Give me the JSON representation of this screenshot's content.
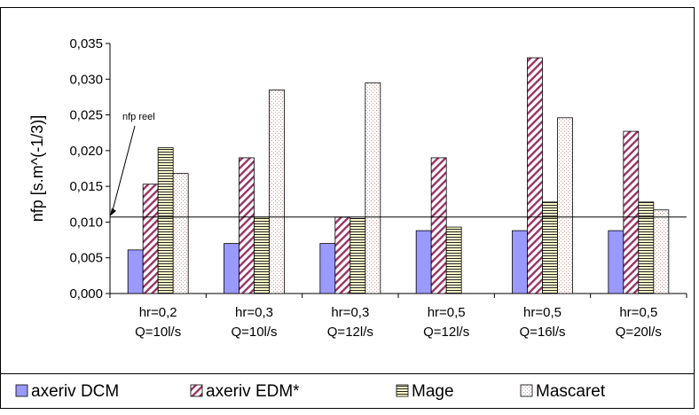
{
  "chart_data": {
    "type": "bar",
    "title": "",
    "xlabel": "",
    "ylabel": "nfp [s.m^(-1/3)]",
    "ylim": [
      0,
      0.035
    ],
    "yticks": [
      "0,000",
      "0,005",
      "0,010",
      "0,015",
      "0,020",
      "0,025",
      "0,030",
      "0,035"
    ],
    "categories": [
      [
        "hr=0,2",
        "Q=10l/s"
      ],
      [
        "hr=0,3",
        "Q=10l/s"
      ],
      [
        "hr=0,3",
        "Q=12l/s"
      ],
      [
        "hr=0,5",
        "Q=12l/s"
      ],
      [
        "hr=0,5",
        "Q=16l/s"
      ],
      [
        "hr=0,5",
        "Q=20l/s"
      ]
    ],
    "series": [
      {
        "name": "axeriv DCM",
        "values": [
          0.0061,
          0.007,
          0.007,
          0.0088,
          0.0088,
          0.0088
        ],
        "color": "#9999ff",
        "pattern": "solid"
      },
      {
        "name": "axeriv EDM*",
        "values": [
          0.0153,
          0.019,
          0.0107,
          0.019,
          0.033,
          0.0227
        ],
        "color": "#993366",
        "pattern": "diagonal"
      },
      {
        "name": "Mage",
        "values": [
          0.0204,
          0.0107,
          0.0105,
          0.0093,
          0.0128,
          0.0128
        ],
        "color": "#ffffcc",
        "pattern": "horizontal"
      },
      {
        "name": "Mascaret",
        "values": [
          0.0168,
          0.0285,
          0.0295,
          null,
          0.0246,
          0.0117
        ],
        "color": "#ffffff",
        "pattern": "dotted"
      }
    ],
    "reference_line": {
      "label": "nfp reel",
      "value": 0.0107
    },
    "grid": false,
    "legend_position": "bottom"
  }
}
